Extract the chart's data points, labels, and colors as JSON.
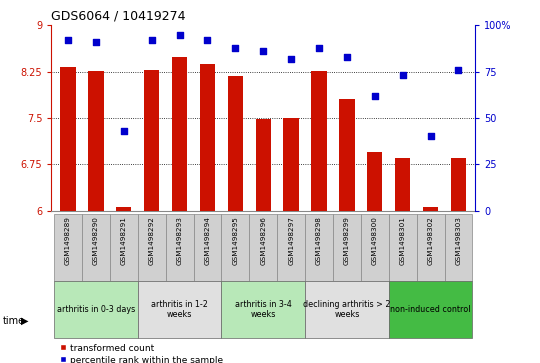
{
  "title": "GDS6064 / 10419274",
  "samples": [
    "GSM1498289",
    "GSM1498290",
    "GSM1498291",
    "GSM1498292",
    "GSM1498293",
    "GSM1498294",
    "GSM1498295",
    "GSM1498296",
    "GSM1498297",
    "GSM1498298",
    "GSM1498299",
    "GSM1498300",
    "GSM1498301",
    "GSM1498302",
    "GSM1498303"
  ],
  "bar_values": [
    8.32,
    8.26,
    6.05,
    8.27,
    8.48,
    8.38,
    8.18,
    7.48,
    7.5,
    8.26,
    7.8,
    6.95,
    6.85,
    6.05,
    6.85
  ],
  "dot_values": [
    92,
    91,
    43,
    92,
    95,
    92,
    88,
    86,
    82,
    88,
    83,
    62,
    73,
    40,
    76
  ],
  "groups": [
    {
      "label": "arthritis in 0-3 days",
      "start": 0,
      "end": 3,
      "color": "#b8e8b8"
    },
    {
      "label": "arthritis in 1-2\nweeks",
      "start": 3,
      "end": 6,
      "color": "#e0e0e0"
    },
    {
      "label": "arthritis in 3-4\nweeks",
      "start": 6,
      "end": 9,
      "color": "#b8e8b8"
    },
    {
      "label": "declining arthritis > 2\nweeks",
      "start": 9,
      "end": 12,
      "color": "#e0e0e0"
    },
    {
      "label": "non-induced control",
      "start": 12,
      "end": 15,
      "color": "#44bb44"
    }
  ],
  "ylim_left": [
    6,
    9
  ],
  "ylim_right": [
    0,
    100
  ],
  "yticks_left": [
    6,
    6.75,
    7.5,
    8.25,
    9
  ],
  "yticks_right": [
    0,
    25,
    50,
    75,
    100
  ],
  "bar_color": "#cc1100",
  "dot_color": "#0000cc",
  "bar_width": 0.55,
  "legend_bar_label": "transformed count",
  "legend_dot_label": "percentile rank within the sample",
  "sample_box_color": "#d0d0d0",
  "sample_box_edge": "#888888"
}
